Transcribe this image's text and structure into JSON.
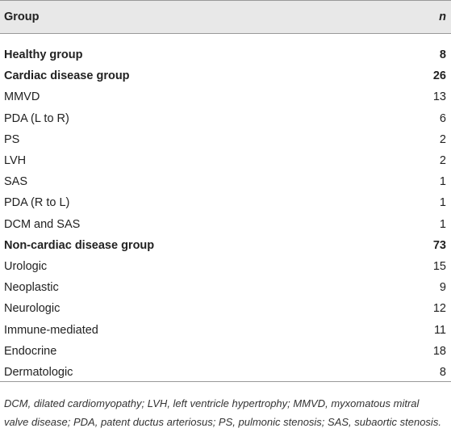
{
  "table": {
    "header": [
      "Group",
      "n"
    ],
    "groups": [
      {
        "label": "Healthy group",
        "n": 8,
        "items": []
      },
      {
        "label": "Cardiac disease group",
        "n": 26,
        "items": [
          {
            "label": "MMVD",
            "n": 13
          },
          {
            "label": "PDA (L to R)",
            "n": 6
          },
          {
            "label": "PS",
            "n": 2
          },
          {
            "label": "LVH",
            "n": 2
          },
          {
            "label": "SAS",
            "n": 1
          },
          {
            "label": "PDA (R to L)",
            "n": 1
          },
          {
            "label": "DCM and SAS",
            "n": 1
          }
        ]
      },
      {
        "label": "Non-cardiac disease group",
        "n": 73,
        "items": [
          {
            "label": "Urologic",
            "n": 15
          },
          {
            "label": "Neoplastic",
            "n": 9
          },
          {
            "label": "Neurologic",
            "n": 12
          },
          {
            "label": "Immune-mediated",
            "n": 11
          },
          {
            "label": "Endocrine",
            "n": 18
          },
          {
            "label": "Dermatologic",
            "n": 8
          }
        ]
      }
    ],
    "footnote": "DCM, dilated cardiomyopathy; LVH, left ventricle hypertrophy; MMVD, myxomatous mitral valve disease; PDA, patent ductus arteriosus; PS, pulmonic stenosis; SAS, subaortic stenosis."
  }
}
